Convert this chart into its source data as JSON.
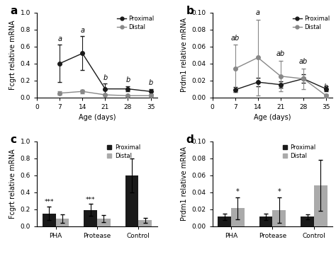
{
  "panel_a": {
    "title": "a",
    "xlabel": "Age (days)",
    "ylabel": "Fcgrt relative mRNA",
    "xlim": [
      0,
      37
    ],
    "ylim": [
      0,
      1.0
    ],
    "yticks": [
      0.0,
      0.2,
      0.4,
      0.6,
      0.8,
      1.0
    ],
    "xticks": [
      0,
      7,
      14,
      21,
      28,
      35
    ],
    "ages": [
      7,
      14,
      21,
      28,
      35
    ],
    "proximal_mean": [
      0.4,
      0.52,
      0.1,
      0.1,
      0.07
    ],
    "proximal_err": [
      0.22,
      0.2,
      0.06,
      0.03,
      0.03
    ],
    "distal_mean": [
      0.05,
      0.07,
      0.03,
      0.02,
      0.02
    ],
    "distal_err": [
      0.02,
      0.02,
      0.01,
      0.01,
      0.01
    ],
    "proximal_labels": [
      "a",
      "a",
      "b",
      "b",
      "b"
    ],
    "proximal_color": "#1a1a1a",
    "distal_color": "#888888",
    "legend_entries": [
      "Proximal",
      "Distal"
    ]
  },
  "panel_b": {
    "title": "b",
    "xlabel": "Age (days)",
    "ylabel": "Prdm1 relative mRNA",
    "xlim": [
      0,
      37
    ],
    "ylim": [
      0,
      0.1
    ],
    "yticks": [
      0.0,
      0.02,
      0.04,
      0.06,
      0.08,
      0.1
    ],
    "xticks": [
      0,
      7,
      14,
      21,
      28,
      35
    ],
    "ages": [
      7,
      14,
      21,
      28,
      35
    ],
    "proximal_mean": [
      0.009,
      0.018,
      0.015,
      0.022,
      0.01
    ],
    "proximal_err": [
      0.003,
      0.005,
      0.004,
      0.005,
      0.003
    ],
    "distal_mean": [
      0.034,
      0.047,
      0.025,
      0.022,
      0.002
    ],
    "distal_err": [
      0.028,
      0.045,
      0.018,
      0.012,
      0.002
    ],
    "distal_labels": [
      "ab",
      "a",
      "ab",
      "ab",
      "b"
    ],
    "proximal_color": "#1a1a1a",
    "distal_color": "#888888",
    "legend_entries": [
      "Proximal",
      "Distal"
    ]
  },
  "panel_c": {
    "title": "c",
    "ylabel": "Fcgrt relative mRNA",
    "ylim": [
      0,
      1.0
    ],
    "yticks": [
      0.0,
      0.2,
      0.4,
      0.6,
      0.8,
      1.0
    ],
    "categories": [
      "PHA",
      "Protease",
      "Control"
    ],
    "proximal_mean": [
      0.15,
      0.19,
      0.6
    ],
    "proximal_err": [
      0.08,
      0.07,
      0.2
    ],
    "distal_mean": [
      0.09,
      0.09,
      0.07
    ],
    "distal_err": [
      0.05,
      0.04,
      0.03
    ],
    "proximal_labels": [
      "***",
      "***",
      ""
    ],
    "proximal_color": "#1a1a1a",
    "distal_color": "#aaaaaa",
    "legend_entries": [
      "Proximal",
      "Distal"
    ],
    "bar_width": 0.32
  },
  "panel_d": {
    "title": "d",
    "ylabel": "Prdm1 relative mRNA",
    "ylim": [
      0,
      0.1
    ],
    "yticks": [
      0.0,
      0.02,
      0.04,
      0.06,
      0.08,
      0.1
    ],
    "categories": [
      "PHA",
      "Protease",
      "Control"
    ],
    "proximal_mean": [
      0.011,
      0.011,
      0.011
    ],
    "proximal_err": [
      0.004,
      0.004,
      0.003
    ],
    "distal_mean": [
      0.021,
      0.019,
      0.048
    ],
    "distal_err": [
      0.013,
      0.015,
      0.03
    ],
    "distal_labels": [
      "*",
      "*",
      ""
    ],
    "proximal_color": "#1a1a1a",
    "distal_color": "#aaaaaa",
    "legend_entries": [
      "Proximal",
      "Distal"
    ],
    "bar_width": 0.32
  },
  "background_color": "#ffffff",
  "font_size": 7,
  "tick_font_size": 6.5
}
